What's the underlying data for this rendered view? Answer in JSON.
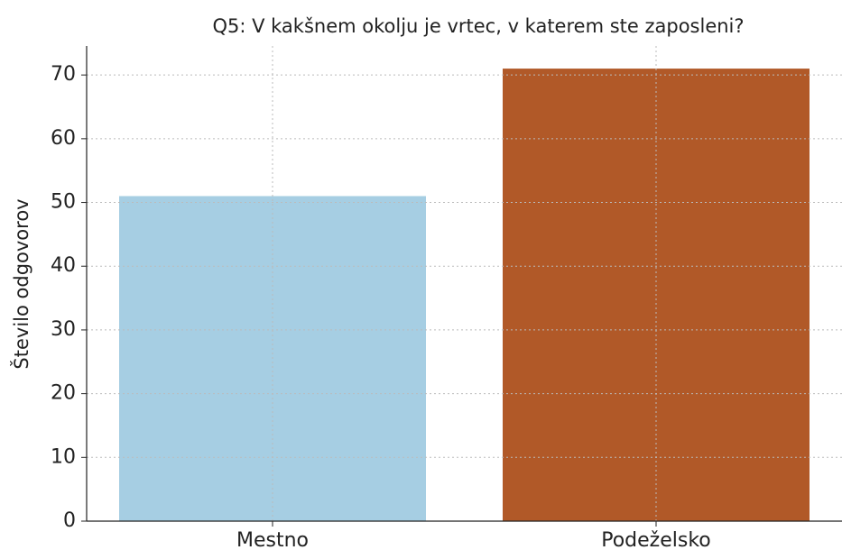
{
  "chart_data": {
    "type": "bar",
    "title": "Q5: V kakšnem okolju je vrtec, v katerem ste zaposleni?",
    "ylabel": "Število odgovorov",
    "categories": [
      "Mestno",
      "Podeželsko"
    ],
    "values": [
      51,
      71
    ],
    "colors": [
      "#a6cee3",
      "#b15928"
    ],
    "ylim": [
      0,
      74.55
    ],
    "yticks": [
      0,
      10,
      20,
      30,
      40,
      50,
      60,
      70
    ],
    "grid": true
  }
}
